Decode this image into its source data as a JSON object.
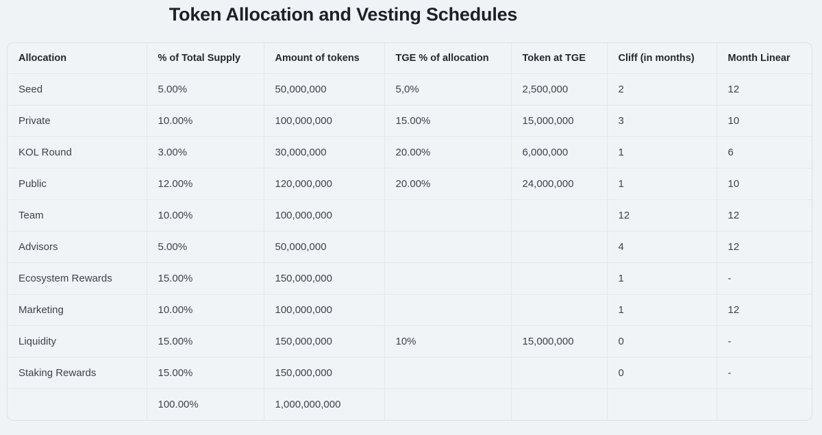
{
  "page": {
    "title": "Token Allocation and Vesting Schedules"
  },
  "table": {
    "columns": [
      "Allocation",
      "% of Total Supply",
      "Amount of tokens",
      "TGE % of allocation",
      "Token at TGE",
      "Cliff (in months)",
      "Month Linear"
    ],
    "rows": [
      [
        "Seed",
        "5.00%",
        "50,000,000",
        "5,0%",
        "2,500,000",
        "2",
        "12"
      ],
      [
        "Private",
        "10.00%",
        "100,000,000",
        "15.00%",
        "15,000,000",
        "3",
        "10"
      ],
      [
        "KOL Round",
        "3.00%",
        "30,000,000",
        "20.00%",
        "6,000,000",
        "1",
        "6"
      ],
      [
        "Public",
        "12.00%",
        "120,000,000",
        "20.00%",
        "24,000,000",
        "1",
        "10"
      ],
      [
        "Team",
        "10.00%",
        "100,000,000",
        "",
        "",
        "12",
        "12"
      ],
      [
        "Advisors",
        "5.00%",
        "50,000,000",
        "",
        "",
        "4",
        "12"
      ],
      [
        "Ecosystem Rewards",
        "15.00%",
        "150,000,000",
        "",
        "",
        "1",
        "-"
      ],
      [
        "Marketing",
        "10.00%",
        "100,000,000",
        "",
        "",
        "1",
        "12"
      ],
      [
        "Liquidity",
        "15.00%",
        "150,000,000",
        "10%",
        "15,000,000",
        "0",
        "-"
      ],
      [
        "Staking Rewards",
        "15.00%",
        "150,000,000",
        "",
        "",
        "0",
        "-"
      ],
      [
        "",
        "100.00%",
        "1,000,000,000",
        "",
        "",
        "",
        ""
      ]
    ]
  },
  "colors": {
    "page_bg": "#eff3f6",
    "cell_bg": "#f1f4f6",
    "outer_border": "#dbe0e5",
    "inner_border": "#e2e7eb",
    "title_text": "#1d2127",
    "header_text": "#23282d",
    "cell_text": "#3d434a"
  }
}
